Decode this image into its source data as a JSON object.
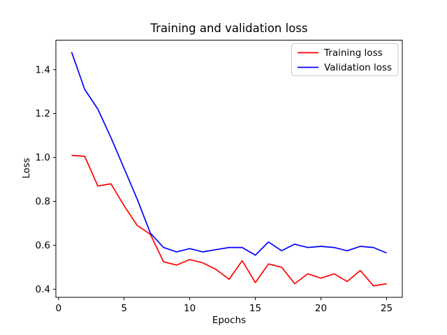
{
  "chart_data": {
    "type": "line",
    "title": "Training and validation loss",
    "xlabel": "Epochs",
    "ylabel": "Loss",
    "x": [
      1,
      2,
      3,
      4,
      5,
      6,
      7,
      8,
      9,
      10,
      11,
      12,
      13,
      14,
      15,
      16,
      17,
      18,
      19,
      20,
      21,
      22,
      23,
      24,
      25
    ],
    "series": [
      {
        "name": "Training loss",
        "color": "#ff0000",
        "values": [
          1.01,
          1.005,
          0.87,
          0.88,
          0.78,
          0.69,
          0.65,
          0.525,
          0.51,
          0.535,
          0.52,
          0.49,
          0.445,
          0.53,
          0.43,
          0.515,
          0.5,
          0.425,
          0.47,
          0.45,
          0.47,
          0.435,
          0.485,
          0.415,
          0.425
        ]
      },
      {
        "name": "Validation loss",
        "color": "#0000ff",
        "values": [
          1.48,
          1.31,
          1.22,
          1.09,
          0.95,
          0.81,
          0.655,
          0.59,
          0.57,
          0.585,
          0.57,
          0.58,
          0.59,
          0.59,
          0.555,
          0.615,
          0.575,
          0.605,
          0.59,
          0.595,
          0.59,
          0.575,
          0.595,
          0.59,
          0.565
        ]
      }
    ],
    "xticks": [
      0,
      5,
      10,
      15,
      20,
      25
    ],
    "xtick_labels": [
      "0",
      "5",
      "10",
      "15",
      "20",
      "25"
    ],
    "yticks": [
      0.4,
      0.6,
      0.8,
      1.0,
      1.2,
      1.4
    ],
    "ytick_labels": [
      "0.4",
      "0.6",
      "0.8",
      "1.0",
      "1.2",
      "1.4"
    ],
    "xlim": [
      -0.2,
      26.2
    ],
    "ylim": [
      0.363,
      1.534
    ],
    "grid": false,
    "legend_position": "upper right",
    "background_color": "#ffffff",
    "spine_color": "#000000",
    "legend_border_color": "#cccccc"
  }
}
